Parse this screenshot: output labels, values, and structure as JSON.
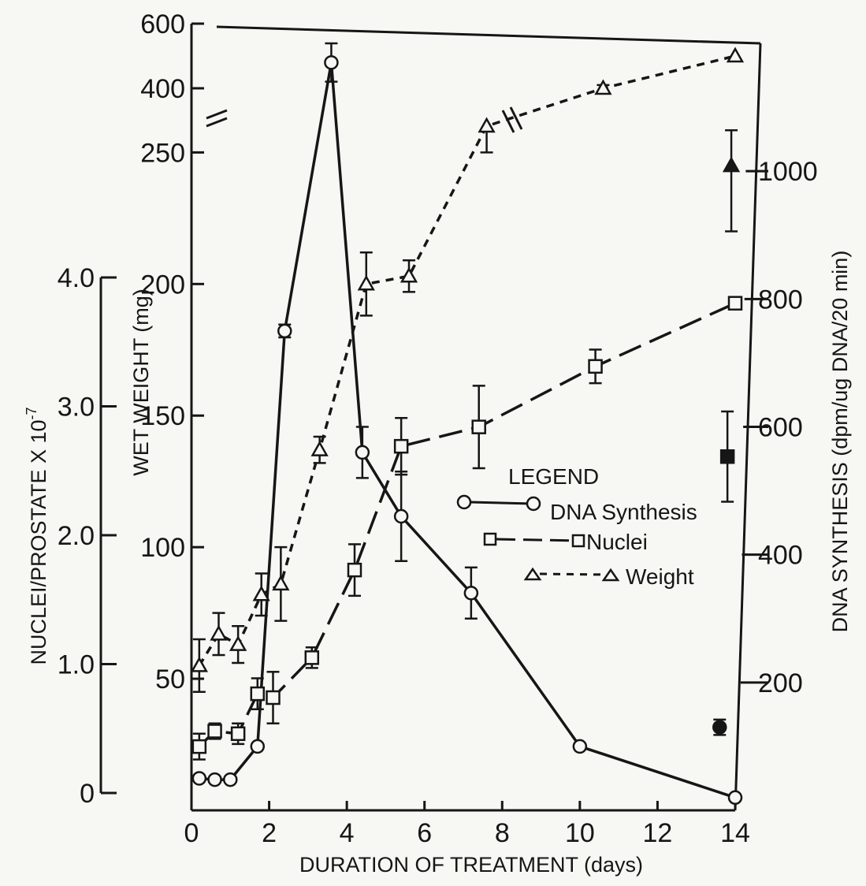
{
  "chart_data": {
    "type": "line",
    "xlabel": "DURATION OF TREATMENT (days)",
    "x_ticks": [
      "0",
      "2",
      "4",
      "6",
      "8",
      "10",
      "12",
      "14"
    ],
    "xlim": [
      0,
      14
    ],
    "y_left_outer": {
      "label": "NUCLEI/PROSTATE X 10",
      "label_exponent": "-7",
      "ticks": [
        "0",
        "1.0",
        "2.0",
        "3.0",
        "4.0"
      ],
      "range": [
        0,
        4.0
      ]
    },
    "y_left": {
      "label": "WET WEIGHT (mg)",
      "ticks_lower": [
        "50",
        "100",
        "150",
        "200",
        "250"
      ],
      "ticks_upper": [
        "400",
        "600"
      ],
      "range_lower": [
        0,
        260
      ],
      "range_upper": [
        400,
        600
      ],
      "broken_axis": true
    },
    "y_right": {
      "label": "DNA SYNTHESIS (dpm/ug DNA/20 min)",
      "ticks": [
        "200",
        "400",
        "600",
        "800",
        "1000"
      ],
      "range": [
        0,
        1200
      ]
    },
    "legend": {
      "title": "LEGEND",
      "entries": [
        "DNA Synthesis",
        "Nuclei",
        "Weight"
      ]
    },
    "series": [
      {
        "name": "DNA Synthesis",
        "axis": "y_right",
        "marker": "circle",
        "line_style": "solid",
        "x": [
          0.2,
          0.6,
          1.0,
          1.7,
          2.4,
          3.6,
          4.4,
          5.4,
          7.2,
          10.0,
          14.0
        ],
        "y": [
          50,
          48,
          48,
          100,
          750,
          1170,
          560,
          460,
          340,
          100,
          20
        ],
        "err": [
          0,
          0,
          0,
          0,
          10,
          30,
          40,
          70,
          40,
          0,
          0
        ]
      },
      {
        "name": "Nuclei",
        "axis": "y_left_outer",
        "marker": "square",
        "line_style": "dashed",
        "x": [
          0.2,
          0.6,
          1.2,
          1.7,
          2.1,
          3.1,
          4.2,
          5.4,
          7.4,
          10.4,
          14.0
        ],
        "y": [
          0.36,
          0.48,
          0.46,
          0.77,
          0.74,
          1.05,
          1.73,
          2.69,
          2.84,
          3.31,
          3.8
        ],
        "err": [
          0.1,
          0.06,
          0.08,
          0.12,
          0.2,
          0.08,
          0.2,
          0.22,
          0.32,
          0.13,
          0.04
        ]
      },
      {
        "name": "Weight",
        "axis": "y_left",
        "marker": "triangle",
        "line_style": "short-dash",
        "x": [
          0.2,
          0.7,
          1.2,
          1.8,
          2.3,
          3.3,
          4.5,
          5.6,
          7.6,
          10.6,
          14.0
        ],
        "y": [
          55,
          67,
          63,
          82,
          86,
          137,
          200,
          203,
          260,
          400,
          500
        ],
        "err": [
          10,
          8,
          7,
          8,
          14,
          5,
          12,
          6,
          10,
          10,
          0
        ]
      },
      {
        "name": "day 14 DNA synthesis (filled)",
        "axis": "y_right",
        "marker": "filled-circle",
        "x": [
          13.6
        ],
        "y": [
          130
        ],
        "err": [
          12
        ]
      },
      {
        "name": "day 14 nuclei (filled)",
        "axis": "y_left_outer",
        "marker": "filled-square",
        "x": [
          13.8
        ],
        "y": [
          2.61
        ],
        "err": [
          0.35
        ]
      },
      {
        "name": "day 14 weight (filled)",
        "axis": "y_left",
        "marker": "filled-triangle",
        "x": [
          13.9
        ],
        "y": [
          245
        ],
        "err": [
          25
        ]
      }
    ],
    "grid": false,
    "legend_placement": "center-right"
  },
  "colors": {
    "ink": "#161616",
    "paper": "#f7f7f3"
  }
}
